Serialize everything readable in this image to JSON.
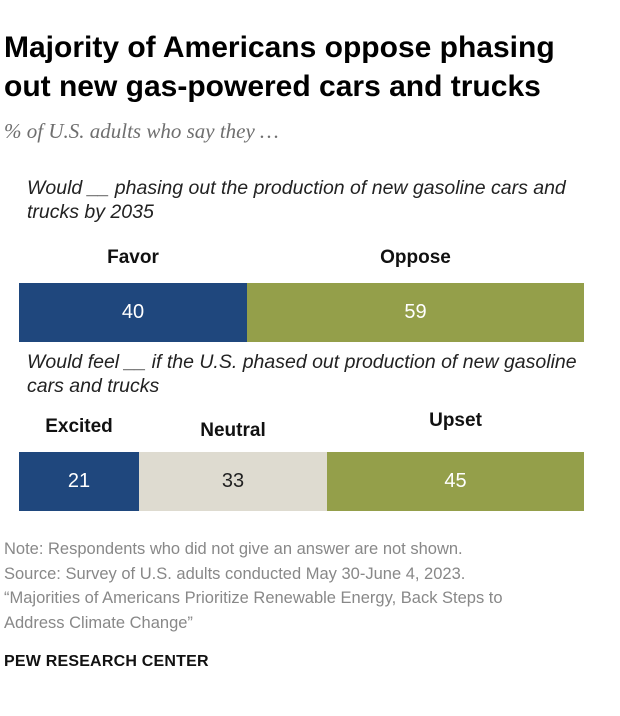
{
  "title": "Majority of Americans oppose phasing out new gas-powered cars and trucks",
  "subtitle": "% of U.S. adults who say they …",
  "chart_data": [
    {
      "type": "bar",
      "orientation": "horizontal-stacked",
      "question": "Would __ phasing out the production of new gasoline cars and trucks by 2035",
      "categories": [
        "Favor",
        "Oppose"
      ],
      "values": [
        40,
        59
      ],
      "colors": [
        "#1f477d",
        "#949f4a"
      ],
      "label_colors": [
        "#ffffff",
        "#ffffff"
      ],
      "xlim": [
        0,
        100
      ]
    },
    {
      "type": "bar",
      "orientation": "horizontal-stacked",
      "question": "Would feel __ if the U.S. phased out production of new gasoline cars and trucks",
      "categories": [
        "Excited",
        "Neutral",
        "Upset"
      ],
      "values": [
        21,
        33,
        45
      ],
      "colors": [
        "#1f477d",
        "#dedbd0",
        "#949f4a"
      ],
      "label_colors": [
        "#ffffff",
        "#222222",
        "#ffffff"
      ],
      "xlim": [
        0,
        100
      ]
    }
  ],
  "notes": [
    "Note: Respondents who did not give an answer are not shown.",
    "Source: Survey of U.S. adults conducted May 30-June 4, 2023.",
    "“Majorities of Americans Prioritize Renewable Energy, Back Steps to",
    "Address Climate Change”"
  ],
  "brand": "PEW RESEARCH CENTER"
}
